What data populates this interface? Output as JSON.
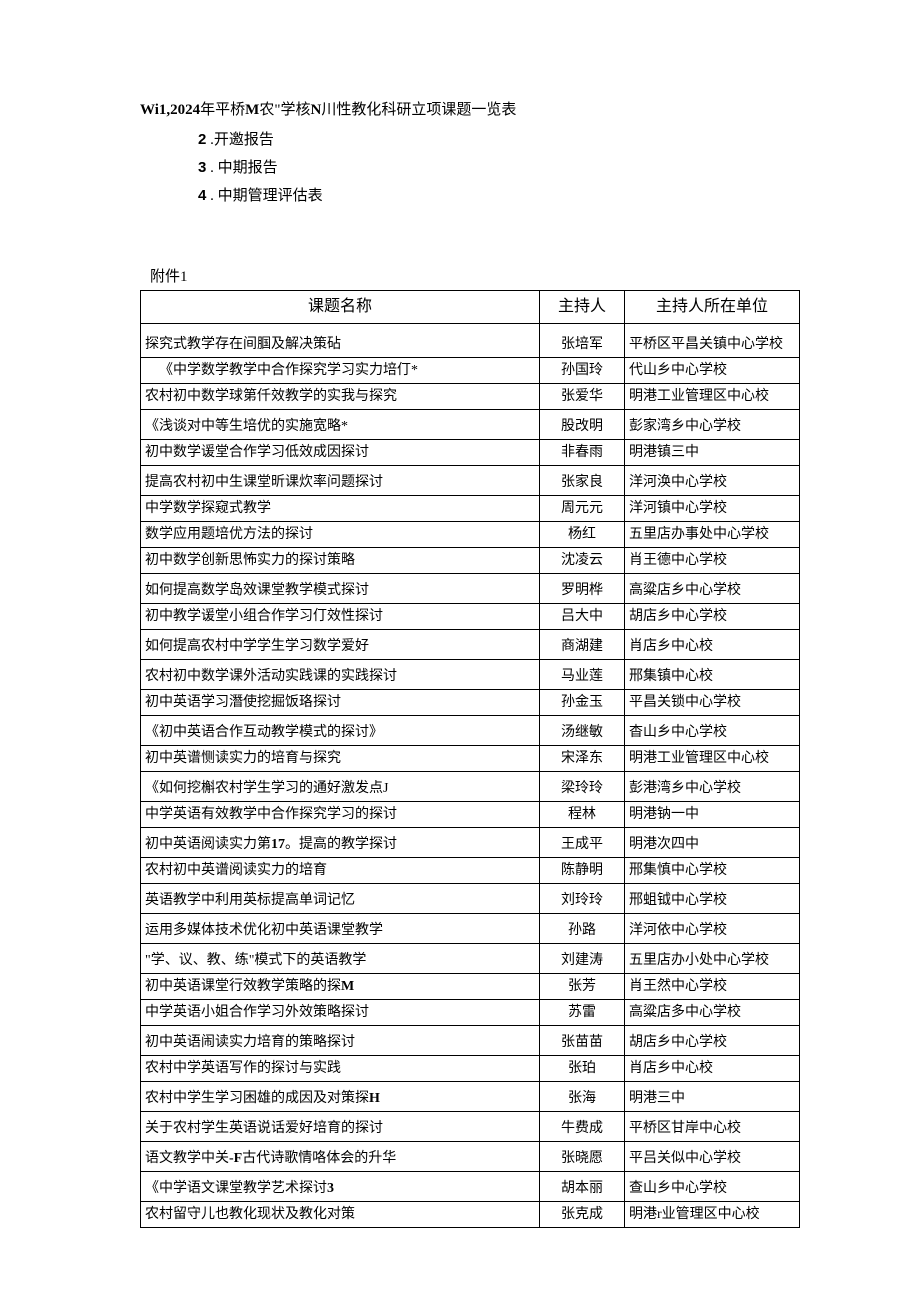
{
  "header": {
    "prefix": "Wi1,2024",
    "text1": "年平桥",
    "bold1": "M",
    "text2": "农\"学核",
    "bold2": "N",
    "text3": "川性教化科研立项课题一览表"
  },
  "list": [
    {
      "num": "2",
      "text": " .开邀报告"
    },
    {
      "num": "3",
      "text": " . 中期报告"
    },
    {
      "num": "4",
      "text": " . 中期管理评估表"
    }
  ],
  "attach_label": "附件1",
  "table": {
    "headers": [
      "课题名称",
      "主持人",
      "主持人所在单位"
    ],
    "rows": [
      {
        "topic": "探究式教学存在间腘及解决策砧",
        "host": "张培军",
        "unit": "平桥区平昌关镇中心学校",
        "style": "tall"
      },
      {
        "topic": "《中学数学教学中合作探究学习实力培仃*",
        "host": "孙国玲",
        "unit": "代山乡中心学校",
        "style": "indent"
      },
      {
        "topic": "农村初中数学球第仟效教学的实我与探究",
        "host": "张爱华",
        "unit": "明港工业管理区中心校"
      },
      {
        "topic": "《浅谈对中等生培优的实施宽略*",
        "host": "股改明",
        "unit": "彭家湾乡中心学校",
        "style": "indent med"
      },
      {
        "topic": "初中数学谖堂合作学习低效成因探讨",
        "host": "非春雨",
        "unit": "明港镇三中"
      },
      {
        "topic": "提高农村初中生课堂昕课炊率问题探讨",
        "host": "张家良",
        "unit": "洋河涣中心学校",
        "style": "med"
      },
      {
        "topic": "中学数学探窥式教学",
        "host": "周元元",
        "unit": "洋河镇中心学校"
      },
      {
        "topic": "数学应用题培优方法的探讨",
        "host": "杨红",
        "unit": "五里店办事处中心学校"
      },
      {
        "topic": "初中数学创新思怖实力的探讨策略",
        "host": "沈凌云",
        "unit": "肖王德中心学校"
      },
      {
        "topic": "如何提高数学岛效课堂教学模式探讨",
        "host": "罗明桦",
        "unit": "高粱店乡中心学校",
        "style": "med"
      },
      {
        "topic": "初中教学谖堂小组合作学习仃效性探讨",
        "host": "吕大中",
        "unit": "胡店乡中心学校"
      },
      {
        "topic": "如何提高农村中学学生学习数学爱好",
        "host": "商湖建",
        "unit": "肖店乡中心校",
        "style": "med"
      },
      {
        "topic": "农村初中数学课外活动实践课的实践探讨",
        "host": "马业莲",
        "unit": "邢集镇中心校",
        "style": "med"
      },
      {
        "topic": "初中英语学习潛使挖掘饭珞探讨",
        "host": "孙金玉",
        "unit": "平昌关锁中心学校"
      },
      {
        "topic": "《初中英语合作互动教学模式的探讨》",
        "host": "汤继敏",
        "unit": "杳山乡中心学校",
        "style": "indent med"
      },
      {
        "topic": "初中英谱恻读实力的培育与探究",
        "host": "宋泽东",
        "unit": "明港工业管理区中心校"
      },
      {
        "topic": "《如何挖槲农村学生学习的通好激发点J",
        "host": "梁玲玲",
        "unit": "彭港湾乡中心学校",
        "style": "indent med"
      },
      {
        "topic": "中学英语有效教学中合作探究学习的探讨",
        "host": "程林",
        "unit": "明港钠一中"
      },
      {
        "topic": "初中英语阅读实力第17。提高的教学探讨",
        "host": "王成平",
        "unit": "明港次四中",
        "style": "med",
        "boldpart": "17"
      },
      {
        "topic": "农村初中英谱阅读实力的培育",
        "host": "陈静明",
        "unit": "邢集慎中心学校"
      },
      {
        "topic": "英语教学中利用英标提高单词记忆",
        "host": "刘玲玲",
        "unit": "邢蛆钺中心学校",
        "style": "med"
      },
      {
        "topic": "运用多媒体技术优化初中英语课堂教学",
        "host": "孙路",
        "unit": "洋河依中心学校",
        "style": "med"
      },
      {
        "topic": "\"学、议、教、练\"模式下的英语教学",
        "host": "刘建涛",
        "unit": "五里店办小处中心学校",
        "style": "indent med"
      },
      {
        "topic": "初中英语课堂行效教学策略的探M",
        "host": "张芳",
        "unit": "肖王然中心学校",
        "boldpart": "M"
      },
      {
        "topic": "中学英语小姐合作学习外效策略探讨",
        "host": "苏雷",
        "unit": "高粱店多中心学校"
      },
      {
        "topic": "初中英语闹读实力培育的策略探讨",
        "host": "张苗苗",
        "unit": "胡店乡中心学校",
        "style": "med"
      },
      {
        "topic": "农村中学英语写作的探讨与实践",
        "host": "张珀",
        "unit": "肖店乡中心校"
      },
      {
        "topic": "农村中学生学习困雄的成因及对策探H",
        "host": "张海",
        "unit": "明港三中",
        "style": "med",
        "boldpart": "H"
      },
      {
        "topic": "关于农村学生英语说话爱好培育的探讨",
        "host": "牛费成",
        "unit": "平桥区甘岸中心校",
        "style": "med"
      },
      {
        "topic": "语文教学中关-F古代诗歌情咯体会的升华",
        "host": "张晓愿",
        "unit": "平吕关似中心学校",
        "style": "med",
        "boldpart": "-F"
      },
      {
        "topic": "《中学语文课堂教学艺术探讨3",
        "host": "胡本丽",
        "unit": "查山乡中心学校",
        "style": "indent med",
        "boldpart": "3"
      },
      {
        "topic": "农村留守儿也教化现状及教化对策",
        "host": "张克成",
        "unit": "明港r业管理区中心校",
        "boldpart": "r"
      }
    ]
  }
}
